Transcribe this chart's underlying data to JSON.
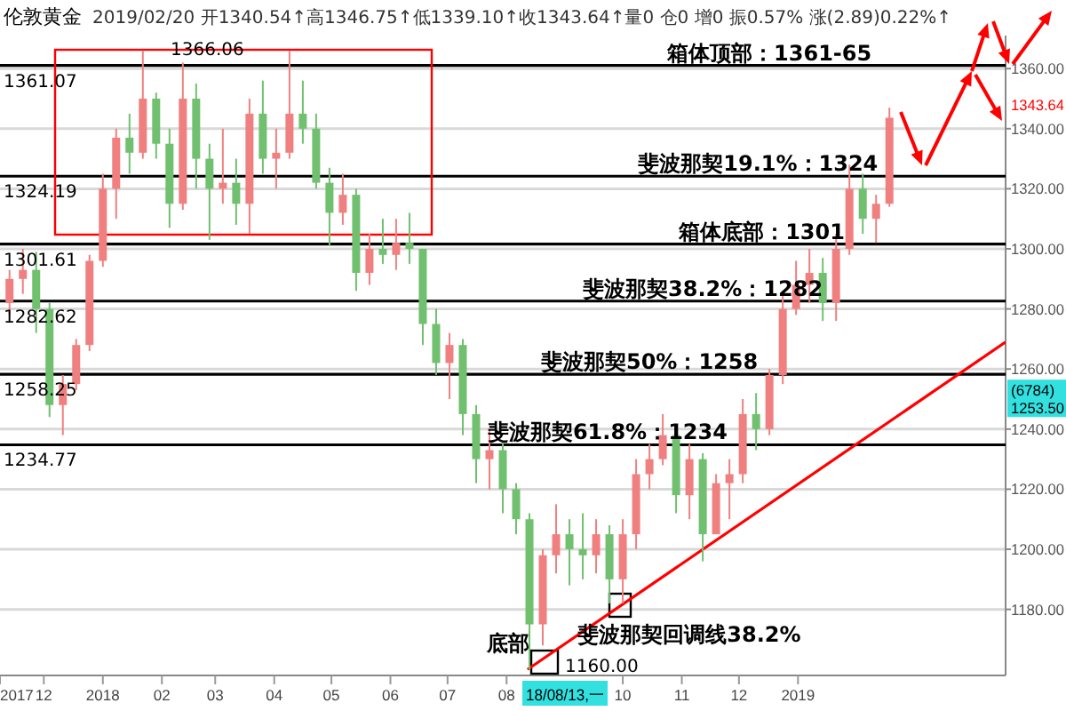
{
  "chart_data": {
    "type": "candlestick",
    "title": "伦敦黄金",
    "subtitle": "2019/02/20 开1340.54↑高1346.75↑低1339.10↑收1343.64↑量0 仓0 增0 振0.57% 涨(2.89)0.22%↑",
    "x": [
      "2017-11-13",
      "2017-11-20",
      "2017-11-27",
      "2017-12-04",
      "2017-12-11",
      "2017-12-18",
      "2017-12-25",
      "2018-01-01",
      "2018-01-08",
      "2018-01-15",
      "2018-01-22",
      "2018-01-29",
      "2018-02-05",
      "2018-02-12",
      "2018-02-19",
      "2018-02-26",
      "2018-03-05",
      "2018-03-12",
      "2018-03-19",
      "2018-03-26",
      "2018-04-02",
      "2018-04-09",
      "2018-04-16",
      "2018-04-23",
      "2018-04-30",
      "2018-05-07",
      "2018-05-14",
      "2018-05-21",
      "2018-05-28",
      "2018-06-04",
      "2018-06-11",
      "2018-06-18",
      "2018-06-25",
      "2018-07-02",
      "2018-07-09",
      "2018-07-16",
      "2018-07-23",
      "2018-07-30",
      "2018-08-06",
      "2018-08-13",
      "2018-08-20",
      "2018-08-27",
      "2018-09-03",
      "2018-09-10",
      "2018-09-17",
      "2018-09-24",
      "2018-10-01",
      "2018-10-08",
      "2018-10-15",
      "2018-10-22",
      "2018-10-29",
      "2018-11-05",
      "2018-11-12",
      "2018-11-19",
      "2018-11-26",
      "2018-12-03",
      "2018-12-10",
      "2018-12-17",
      "2018-12-24",
      "2018-12-31",
      "2019-01-07",
      "2019-01-14",
      "2019-01-21",
      "2019-01-28",
      "2019-02-04",
      "2019-02-11",
      "2019-02-18"
    ],
    "ohlc": [
      [
        1282,
        1293,
        1278,
        1290
      ],
      [
        1290,
        1300,
        1285,
        1293
      ],
      [
        1293,
        1299,
        1272,
        1280
      ],
      [
        1280,
        1282,
        1244,
        1248
      ],
      [
        1248,
        1258,
        1238,
        1255
      ],
      [
        1255,
        1270,
        1253,
        1268
      ],
      [
        1268,
        1298,
        1266,
        1296
      ],
      [
        1296,
        1325,
        1294,
        1320
      ],
      [
        1320,
        1340,
        1310,
        1337
      ],
      [
        1337,
        1345,
        1325,
        1332
      ],
      [
        1332,
        1366.06,
        1330,
        1350
      ],
      [
        1350,
        1352,
        1330,
        1335
      ],
      [
        1335,
        1340,
        1307,
        1315
      ],
      [
        1315,
        1362,
        1313,
        1350
      ],
      [
        1350,
        1355,
        1320,
        1330
      ],
      [
        1330,
        1335,
        1303,
        1320
      ],
      [
        1320,
        1340,
        1315,
        1322
      ],
      [
        1322,
        1330,
        1308,
        1315
      ],
      [
        1315,
        1350,
        1305,
        1345
      ],
      [
        1345,
        1356,
        1325,
        1330
      ],
      [
        1330,
        1340,
        1320,
        1332
      ],
      [
        1332,
        1366,
        1330,
        1345
      ],
      [
        1345,
        1356,
        1335,
        1340
      ],
      [
        1340,
        1345,
        1320,
        1322
      ],
      [
        1322,
        1327,
        1301,
        1312
      ],
      [
        1312,
        1325,
        1308,
        1318
      ],
      [
        1318,
        1320,
        1286,
        1292
      ],
      [
        1292,
        1305,
        1288,
        1300
      ],
      [
        1300,
        1310,
        1295,
        1298
      ],
      [
        1298,
        1310,
        1293,
        1302
      ],
      [
        1302,
        1312,
        1295,
        1300
      ],
      [
        1300,
        1300,
        1268,
        1275
      ],
      [
        1275,
        1280,
        1258,
        1262
      ],
      [
        1262,
        1272,
        1250,
        1268
      ],
      [
        1268,
        1270,
        1238,
        1245
      ],
      [
        1245,
        1248,
        1222,
        1230
      ],
      [
        1230,
        1240,
        1220,
        1233
      ],
      [
        1233,
        1236,
        1212,
        1220
      ],
      [
        1220,
        1222,
        1205,
        1210
      ],
      [
        1210,
        1212,
        1160,
        1175
      ],
      [
        1175,
        1200,
        1168,
        1198
      ],
      [
        1198,
        1215,
        1192,
        1205
      ],
      [
        1205,
        1210,
        1188,
        1200
      ],
      [
        1200,
        1212,
        1190,
        1198
      ],
      [
        1198,
        1210,
        1192,
        1205
      ],
      [
        1205,
        1208,
        1182,
        1190
      ],
      [
        1190,
        1210,
        1182,
        1205
      ],
      [
        1205,
        1230,
        1200,
        1225
      ],
      [
        1225,
        1235,
        1220,
        1230
      ],
      [
        1230,
        1245,
        1228,
        1238
      ],
      [
        1238,
        1240,
        1212,
        1218
      ],
      [
        1218,
        1235,
        1210,
        1230
      ],
      [
        1230,
        1232,
        1196,
        1205
      ],
      [
        1205,
        1225,
        1205,
        1222
      ],
      [
        1222,
        1230,
        1210,
        1225
      ],
      [
        1225,
        1250,
        1222,
        1245
      ],
      [
        1245,
        1252,
        1233,
        1240
      ],
      [
        1240,
        1260,
        1238,
        1258
      ],
      [
        1258,
        1285,
        1255,
        1280
      ],
      [
        1280,
        1296,
        1278,
        1288
      ],
      [
        1288,
        1300,
        1282,
        1292
      ],
      [
        1292,
        1297,
        1276,
        1282
      ],
      [
        1282,
        1305,
        1276,
        1300
      ],
      [
        1300,
        1328,
        1298,
        1320
      ],
      [
        1320,
        1325,
        1305,
        1310
      ],
      [
        1310,
        1318,
        1302,
        1315
      ],
      [
        1315,
        1347,
        1314,
        1343.64
      ]
    ],
    "colors": [
      "#f08080",
      "#f08080",
      "#70c070",
      "#70c070",
      "#f08080",
      "#f08080",
      "#f08080",
      "#f08080",
      "#f08080",
      "#70c070",
      "#f08080",
      "#70c070",
      "#70c070",
      "#f08080",
      "#70c070",
      "#70c070",
      "#f08080",
      "#70c070",
      "#f08080",
      "#70c070",
      "#f08080",
      "#f08080",
      "#70c070",
      "#70c070",
      "#70c070",
      "#f08080",
      "#70c070",
      "#f08080",
      "#70c070",
      "#f08080",
      "#70c070",
      "#70c070",
      "#70c070",
      "#f08080",
      "#70c070",
      "#70c070",
      "#f08080",
      "#70c070",
      "#70c070",
      "#70c070",
      "#f08080",
      "#f08080",
      "#70c070",
      "#70c070",
      "#f08080",
      "#70c070",
      "#f08080",
      "#f08080",
      "#f08080",
      "#f08080",
      "#70c070",
      "#f08080",
      "#70c070",
      "#f08080",
      "#f08080",
      "#f08080",
      "#70c070",
      "#f08080",
      "#f08080",
      "#f08080",
      "#f08080",
      "#70c070",
      "#f08080",
      "#f08080",
      "#70c070",
      "#f08080",
      "#f08080"
    ],
    "series": [
      {
        "type": "line",
        "color": "#ff0000",
        "x": [
          "2018-08-12",
          "2019-04-20"
        ],
        "values": [
          1160,
          1269
        ]
      }
    ],
    "xlim": [
      "2017-11-08",
      "2019-04-20"
    ],
    "xticks": [
      {
        "value": "2017-11-08",
        "label": "2017"
      },
      {
        "value": "2017-12-01",
        "label": "12"
      },
      {
        "value": "2018-01-01",
        "label": "2018"
      },
      {
        "value": "2018-02-01",
        "label": "02"
      },
      {
        "value": "2018-03-01",
        "label": "03"
      },
      {
        "value": "2018-04-01",
        "label": "04"
      },
      {
        "value": "2018-05-01",
        "label": "05"
      },
      {
        "value": "2018-06-01",
        "label": "06"
      },
      {
        "value": "2018-07-01",
        "label": "07"
      },
      {
        "value": "2018-08-01",
        "label": "08"
      },
      {
        "value": "2018-10-01",
        "label": "10"
      },
      {
        "value": "2018-11-01",
        "label": "11"
      },
      {
        "value": "2018-12-01",
        "label": "12"
      },
      {
        "value": "2019-01-01",
        "label": "2019"
      }
    ],
    "ylim": [
      1158,
      1371
    ],
    "yticks": [
      {
        "value": 1180,
        "label": "1180.00"
      },
      {
        "value": 1200,
        "label": "1200.00"
      },
      {
        "value": 1220,
        "label": "1220.00"
      },
      {
        "value": 1240,
        "label": "1240.00"
      },
      {
        "value": 1260,
        "label": "1260.00"
      },
      {
        "value": 1280,
        "label": "1280.00"
      },
      {
        "value": 1300,
        "label": "1300.00"
      },
      {
        "value": 1320,
        "label": "1320.00"
      },
      {
        "value": 1340,
        "label": "1340.00"
      },
      {
        "value": 1360,
        "label": "1360.00"
      }
    ],
    "grid": "y",
    "ref_lines": [
      {
        "axis": "y",
        "value": 1361.07,
        "label": "1361.07",
        "color": "#000000"
      },
      {
        "axis": "y",
        "value": 1324.19,
        "label": "1324.19",
        "color": "#000000"
      },
      {
        "axis": "y",
        "value": 1301.61,
        "label": "1301.61",
        "color": "#000000"
      },
      {
        "axis": "y",
        "value": 1282.62,
        "label": "1282.62",
        "color": "#000000"
      },
      {
        "axis": "y",
        "value": 1258.25,
        "label": "1258.25",
        "color": "#000000"
      },
      {
        "axis": "y",
        "value": 1234.77,
        "label": "1234.77",
        "color": "#000000"
      }
    ],
    "annotations": [
      {
        "text": "箱体顶部：1361-65",
        "x": "2018-12-17",
        "y": 1361.07
      },
      {
        "text": "斐波那契19.1%：1324",
        "x": "2018-12-11",
        "y": 1324.19
      },
      {
        "text": "箱体底部：1301",
        "x": "2018-12-13",
        "y": 1301.61
      },
      {
        "text": "斐波那契38.2%：1282",
        "x": "2018-11-12",
        "y": 1282.62
      },
      {
        "text": "斐波那契50%：1258",
        "x": "2018-10-15",
        "y": 1258.25
      },
      {
        "text": "斐波那契61.8%：1234",
        "x": "2018-09-23",
        "y": 1234.77
      },
      "1366.06",
      "1160.00",
      "底部",
      "斐波那契回调线38.2%",
      "1343.64",
      "(6784)",
      "1253.50",
      "18/08/13,一"
    ]
  }
}
